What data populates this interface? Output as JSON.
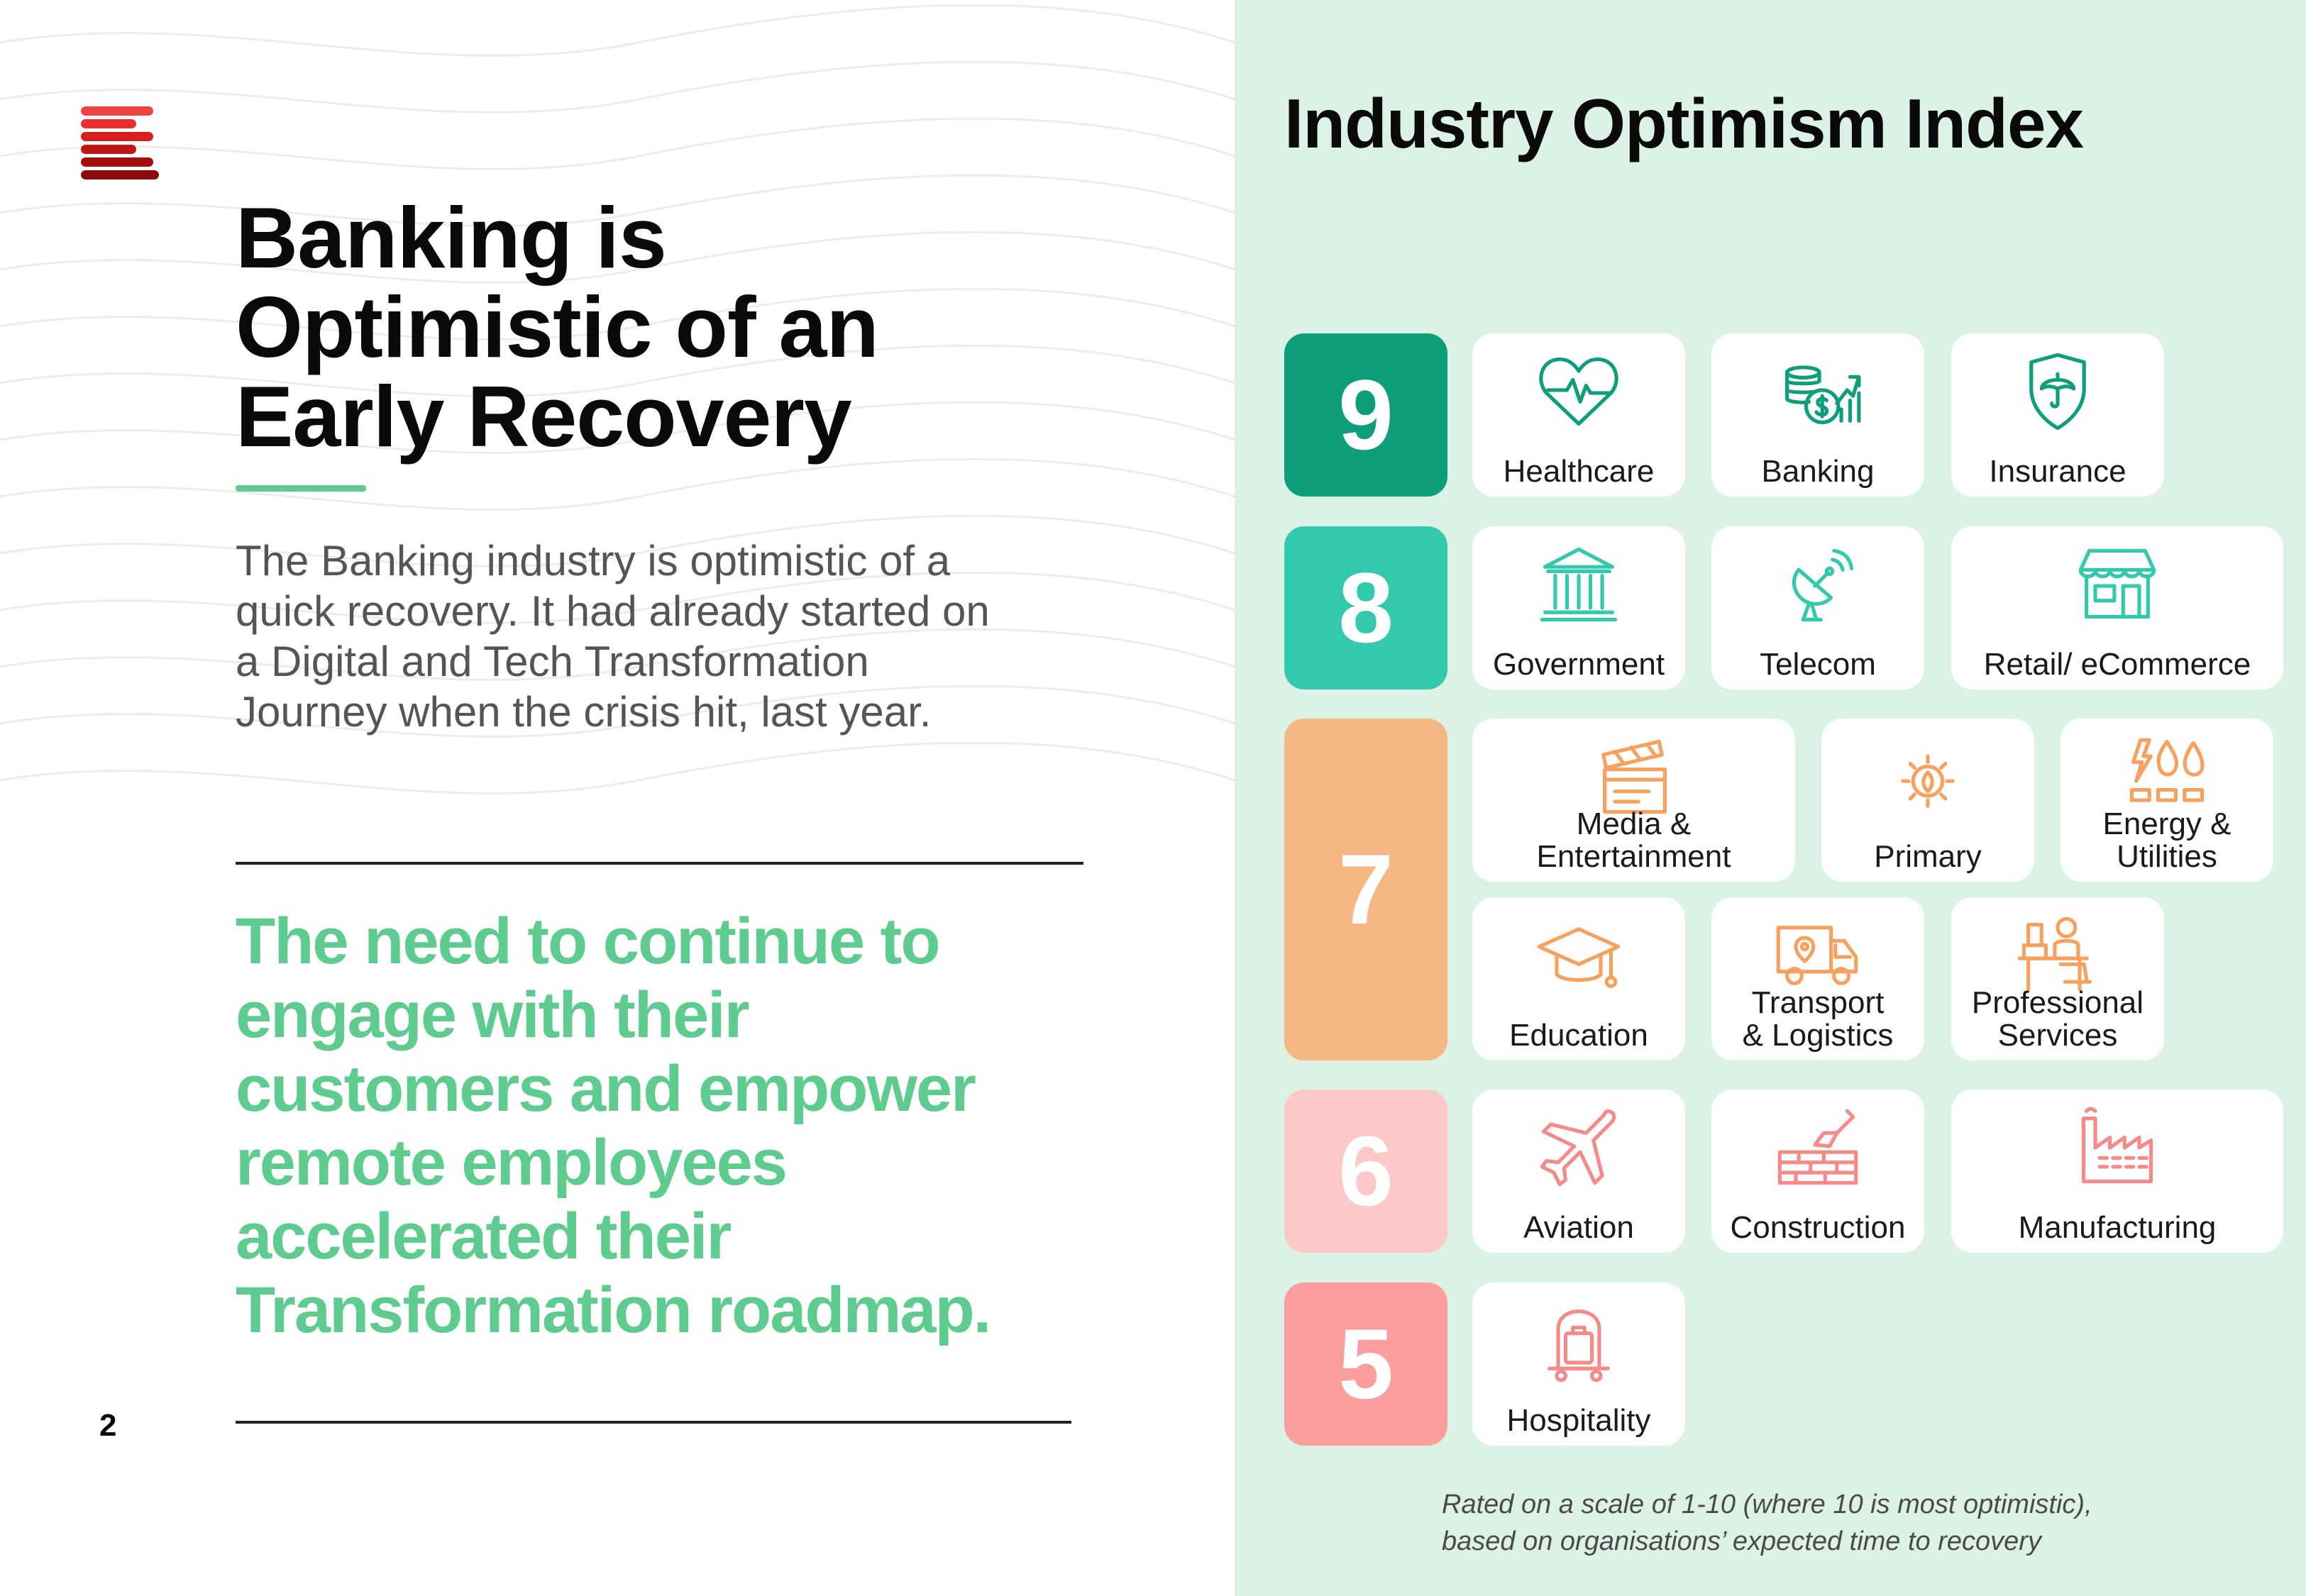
{
  "left": {
    "headline_lines": [
      "Banking is",
      "Optimistic of an",
      "Early Recovery"
    ],
    "body_lines": [
      "The Banking industry is optimistic of a",
      "quick recovery. It had already started on",
      "a Digital and Tech Transformation",
      "Journey when the crisis hit, last year."
    ],
    "quote_lines": [
      "The need to continue to",
      "engage with their",
      "customers and empower",
      "remote employees",
      "accelerated their",
      "Transformation roadmap."
    ],
    "page_number": "2"
  },
  "right": {
    "title": "Industry Optimism Index",
    "footnote_lines": [
      "Rated on a scale of 1-10 (where 10 is most optimistic),",
      "based on organisations’ expected time to recovery"
    ]
  },
  "colors": {
    "score_9": "#0e9e7c",
    "score_8": "#33c9ad",
    "score_7": "#f6b883",
    "score_6": "#fcc8c8",
    "score_5": "#fa9e9e",
    "accent_green": "#5ecb8f",
    "right_panel_bg": "#dcf2e4"
  },
  "index": [
    {
      "score": "9",
      "industries": [
        {
          "label_lines": [
            "Healthcare"
          ],
          "icon": "heart-pulse-icon"
        },
        {
          "label_lines": [
            "Banking"
          ],
          "icon": "coins-growth-icon"
        },
        {
          "label_lines": [
            "Insurance"
          ],
          "icon": "umbrella-shield-icon"
        }
      ]
    },
    {
      "score": "8",
      "industries": [
        {
          "label_lines": [
            "Government"
          ],
          "icon": "government-building-icon"
        },
        {
          "label_lines": [
            "Telecom"
          ],
          "icon": "satellite-dish-icon"
        },
        {
          "label_lines": [
            "Retail/ eCommerce"
          ],
          "icon": "storefront-icon"
        }
      ]
    },
    {
      "score": "7",
      "industries": [
        {
          "label_lines": [
            "Media &",
            "Entertainment"
          ],
          "icon": "clapperboard-icon"
        },
        {
          "label_lines": [
            "Primary"
          ],
          "icon": "sun-leaf-icon"
        },
        {
          "label_lines": [
            "Energy &",
            "Utilities"
          ],
          "icon": "energy-flame-drop-icon"
        },
        {
          "label_lines": [
            "Education"
          ],
          "icon": "graduation-cap-icon"
        },
        {
          "label_lines": [
            "Transport",
            "& Logistics"
          ],
          "icon": "delivery-truck-icon"
        },
        {
          "label_lines": [
            "Professional",
            "Services"
          ],
          "icon": "office-worker-desk-icon"
        }
      ]
    },
    {
      "score": "6",
      "industries": [
        {
          "label_lines": [
            "Aviation"
          ],
          "icon": "airplane-icon"
        },
        {
          "label_lines": [
            "Construction"
          ],
          "icon": "brick-trowel-icon"
        },
        {
          "label_lines": [
            "Manufacturing"
          ],
          "icon": "factory-icon"
        }
      ]
    },
    {
      "score": "5",
      "industries": [
        {
          "label_lines": [
            "Hospitality"
          ],
          "icon": "luggage-trolley-icon"
        }
      ]
    }
  ]
}
